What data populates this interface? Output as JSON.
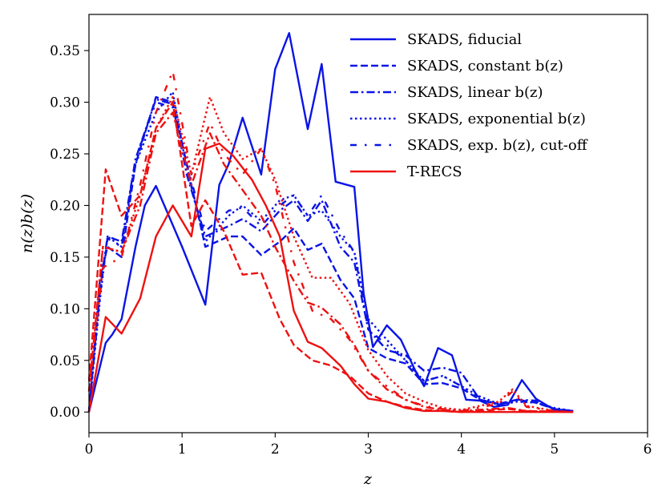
{
  "chart_data": {
    "type": "line",
    "title": "",
    "xlabel": "z",
    "ylabel": "n(z)b(z)",
    "xlim": [
      0,
      6
    ],
    "ylim": [
      -0.02,
      0.385
    ],
    "xticks": [
      "0",
      "1",
      "2",
      "3",
      "4",
      "5",
      "6"
    ],
    "yticks": [
      "0.00",
      "0.05",
      "0.10",
      "0.15",
      "0.20",
      "0.25",
      "0.30",
      "0.35"
    ],
    "grid": false,
    "legend_position": "top-right",
    "colors": {
      "skads": "#0a14e6",
      "trecs": "#ee1111"
    },
    "series": [
      {
        "name": "SKADS, fiducial",
        "color": "#0a14e6",
        "dash": "solid",
        "group": "skads",
        "points": [
          [
            0,
            0
          ],
          [
            0.18,
            0.067
          ],
          [
            0.25,
            0.075
          ],
          [
            0.35,
            0.09
          ],
          [
            0.5,
            0.16
          ],
          [
            0.6,
            0.2
          ],
          [
            0.72,
            0.219
          ],
          [
            1.0,
            0.16
          ],
          [
            1.25,
            0.104
          ],
          [
            1.4,
            0.22
          ],
          [
            1.5,
            0.24
          ],
          [
            1.65,
            0.285
          ],
          [
            1.85,
            0.23
          ],
          [
            2.0,
            0.332
          ],
          [
            2.15,
            0.367
          ],
          [
            2.35,
            0.274
          ],
          [
            2.5,
            0.337
          ],
          [
            2.65,
            0.223
          ],
          [
            2.85,
            0.218
          ],
          [
            2.95,
            0.115
          ],
          [
            3.05,
            0.063
          ],
          [
            3.2,
            0.084
          ],
          [
            3.35,
            0.07
          ],
          [
            3.5,
            0.041
          ],
          [
            3.6,
            0.025
          ],
          [
            3.75,
            0.062
          ],
          [
            3.9,
            0.055
          ],
          [
            4.05,
            0.012
          ],
          [
            4.2,
            0.011
          ],
          [
            4.35,
            0.005
          ],
          [
            4.5,
            0.007
          ],
          [
            4.65,
            0.031
          ],
          [
            4.8,
            0.013
          ],
          [
            5.0,
            0.002
          ],
          [
            5.2,
            0.001
          ]
        ]
      },
      {
        "name": "SKADS, constant b(z)",
        "color": "#0a14e6",
        "dash": "dashed",
        "group": "skads",
        "points": [
          [
            0,
            0
          ],
          [
            0.12,
            0.13
          ],
          [
            0.2,
            0.16
          ],
          [
            0.35,
            0.15
          ],
          [
            0.5,
            0.24
          ],
          [
            0.72,
            0.305
          ],
          [
            0.9,
            0.3
          ],
          [
            1.05,
            0.24
          ],
          [
            1.25,
            0.16
          ],
          [
            1.5,
            0.17
          ],
          [
            1.65,
            0.17
          ],
          [
            1.85,
            0.152
          ],
          [
            2.05,
            0.165
          ],
          [
            2.2,
            0.178
          ],
          [
            2.35,
            0.157
          ],
          [
            2.5,
            0.163
          ],
          [
            2.7,
            0.128
          ],
          [
            2.85,
            0.11
          ],
          [
            3.0,
            0.062
          ],
          [
            3.2,
            0.052
          ],
          [
            3.4,
            0.047
          ],
          [
            3.6,
            0.027
          ],
          [
            3.8,
            0.028
          ],
          [
            4.0,
            0.023
          ],
          [
            4.2,
            0.012
          ],
          [
            4.4,
            0.008
          ],
          [
            4.6,
            0.012
          ],
          [
            4.8,
            0.009
          ],
          [
            5.0,
            0.003
          ],
          [
            5.2,
            0.001
          ]
        ]
      },
      {
        "name": "SKADS, linear b(z)",
        "color": "#0a14e6",
        "dash": "dashdot",
        "group": "skads",
        "points": [
          [
            0,
            0
          ],
          [
            0.12,
            0.12
          ],
          [
            0.2,
            0.17
          ],
          [
            0.35,
            0.165
          ],
          [
            0.5,
            0.245
          ],
          [
            0.72,
            0.303
          ],
          [
            0.9,
            0.298
          ],
          [
            1.05,
            0.23
          ],
          [
            1.25,
            0.17
          ],
          [
            1.5,
            0.18
          ],
          [
            1.65,
            0.187
          ],
          [
            1.85,
            0.175
          ],
          [
            2.05,
            0.195
          ],
          [
            2.2,
            0.205
          ],
          [
            2.35,
            0.185
          ],
          [
            2.5,
            0.205
          ],
          [
            2.7,
            0.16
          ],
          [
            2.85,
            0.145
          ],
          [
            3.0,
            0.08
          ],
          [
            3.2,
            0.06
          ],
          [
            3.4,
            0.055
          ],
          [
            3.6,
            0.04
          ],
          [
            3.8,
            0.043
          ],
          [
            4.0,
            0.038
          ],
          [
            4.2,
            0.012
          ],
          [
            4.4,
            0.007
          ],
          [
            4.6,
            0.012
          ],
          [
            4.8,
            0.011
          ],
          [
            5.0,
            0.003
          ],
          [
            5.2,
            0.001
          ]
        ]
      },
      {
        "name": "SKADS, exponential b(z)",
        "color": "#0a14e6",
        "dash": "dotted",
        "group": "skads",
        "points": [
          [
            0,
            0
          ],
          [
            0.12,
            0.11
          ],
          [
            0.2,
            0.17
          ],
          [
            0.35,
            0.16
          ],
          [
            0.5,
            0.24
          ],
          [
            0.72,
            0.29
          ],
          [
            0.9,
            0.31
          ],
          [
            1.05,
            0.235
          ],
          [
            1.25,
            0.165
          ],
          [
            1.5,
            0.19
          ],
          [
            1.65,
            0.2
          ],
          [
            1.85,
            0.185
          ],
          [
            2.05,
            0.205
          ],
          [
            2.2,
            0.21
          ],
          [
            2.35,
            0.19
          ],
          [
            2.5,
            0.195
          ],
          [
            2.7,
            0.17
          ],
          [
            2.85,
            0.155
          ],
          [
            3.0,
            0.09
          ],
          [
            3.2,
            0.07
          ],
          [
            3.4,
            0.05
          ],
          [
            3.6,
            0.03
          ],
          [
            3.8,
            0.035
          ],
          [
            4.0,
            0.025
          ],
          [
            4.2,
            0.015
          ],
          [
            4.4,
            0.008
          ],
          [
            4.6,
            0.01
          ],
          [
            4.8,
            0.009
          ],
          [
            5.0,
            0.004
          ],
          [
            5.2,
            0.001
          ]
        ]
      },
      {
        "name": "SKADS, exp. b(z), cut-off",
        "color": "#0a14e6",
        "dash": "dashdotsparse",
        "group": "skads",
        "points": [
          [
            0,
            0
          ],
          [
            0.12,
            0.115
          ],
          [
            0.2,
            0.168
          ],
          [
            0.35,
            0.16
          ],
          [
            0.5,
            0.245
          ],
          [
            0.72,
            0.3
          ],
          [
            0.9,
            0.295
          ],
          [
            1.05,
            0.24
          ],
          [
            1.25,
            0.175
          ],
          [
            1.5,
            0.195
          ],
          [
            1.65,
            0.198
          ],
          [
            1.85,
            0.18
          ],
          [
            2.05,
            0.2
          ],
          [
            2.2,
            0.21
          ],
          [
            2.35,
            0.19
          ],
          [
            2.5,
            0.21
          ],
          [
            2.7,
            0.175
          ],
          [
            2.85,
            0.155
          ],
          [
            3.0,
            0.08
          ],
          [
            3.2,
            0.065
          ],
          [
            3.4,
            0.05
          ],
          [
            3.6,
            0.03
          ],
          [
            3.8,
            0.035
          ],
          [
            4.0,
            0.025
          ],
          [
            4.2,
            0.014
          ],
          [
            4.4,
            0.007
          ],
          [
            4.6,
            0.01
          ],
          [
            4.8,
            0.01
          ],
          [
            5.0,
            0.003
          ],
          [
            5.2,
            0.001
          ]
        ]
      },
      {
        "name": "T-RECS",
        "color": "#ee1111",
        "dash": "solid",
        "group": "trecs",
        "points": [
          [
            0,
            0
          ],
          [
            0.18,
            0.092
          ],
          [
            0.35,
            0.076
          ],
          [
            0.55,
            0.11
          ],
          [
            0.72,
            0.17
          ],
          [
            0.9,
            0.2
          ],
          [
            1.1,
            0.17
          ],
          [
            1.25,
            0.255
          ],
          [
            1.4,
            0.26
          ],
          [
            1.55,
            0.248
          ],
          [
            1.75,
            0.225
          ],
          [
            1.9,
            0.2
          ],
          [
            2.05,
            0.17
          ],
          [
            2.2,
            0.098
          ],
          [
            2.35,
            0.068
          ],
          [
            2.5,
            0.062
          ],
          [
            2.7,
            0.045
          ],
          [
            2.85,
            0.027
          ],
          [
            3.0,
            0.013
          ],
          [
            3.2,
            0.01
          ],
          [
            3.4,
            0.004
          ],
          [
            3.6,
            0.001
          ],
          [
            3.8,
            0.001
          ],
          [
            4.0,
            0.0
          ],
          [
            4.5,
            0.0
          ],
          [
            5.0,
            0.0
          ],
          [
            5.2,
            0.0
          ]
        ]
      },
      {
        "name": "",
        "color": "#ee1111",
        "dash": "dashed",
        "group": "trecs",
        "points": [
          [
            0,
            0.03
          ],
          [
            0.18,
            0.235
          ],
          [
            0.35,
            0.19
          ],
          [
            0.55,
            0.21
          ],
          [
            0.72,
            0.275
          ],
          [
            0.9,
            0.3
          ],
          [
            1.1,
            0.18
          ],
          [
            1.25,
            0.205
          ],
          [
            1.45,
            0.175
          ],
          [
            1.65,
            0.133
          ],
          [
            1.85,
            0.135
          ],
          [
            2.05,
            0.09
          ],
          [
            2.2,
            0.065
          ],
          [
            2.4,
            0.05
          ],
          [
            2.6,
            0.045
          ],
          [
            2.8,
            0.035
          ],
          [
            3.0,
            0.018
          ],
          [
            3.2,
            0.01
          ],
          [
            3.4,
            0.005
          ],
          [
            3.6,
            0.002
          ],
          [
            3.8,
            0.001
          ],
          [
            4.0,
            0.0
          ],
          [
            4.5,
            0.003
          ],
          [
            4.7,
            0.001
          ],
          [
            5.2,
            0.0
          ]
        ]
      },
      {
        "name": "",
        "color": "#ee1111",
        "dash": "dashdot",
        "group": "trecs",
        "points": [
          [
            0,
            0.02
          ],
          [
            0.15,
            0.16
          ],
          [
            0.35,
            0.155
          ],
          [
            0.55,
            0.2
          ],
          [
            0.72,
            0.27
          ],
          [
            0.9,
            0.29
          ],
          [
            1.1,
            0.22
          ],
          [
            1.3,
            0.27
          ],
          [
            1.45,
            0.24
          ],
          [
            1.65,
            0.215
          ],
          [
            1.85,
            0.19
          ],
          [
            2.0,
            0.16
          ],
          [
            2.2,
            0.127
          ],
          [
            2.35,
            0.106
          ],
          [
            2.5,
            0.101
          ],
          [
            2.7,
            0.085
          ],
          [
            2.85,
            0.065
          ],
          [
            3.0,
            0.04
          ],
          [
            3.2,
            0.022
          ],
          [
            3.4,
            0.012
          ],
          [
            3.6,
            0.005
          ],
          [
            3.8,
            0.002
          ],
          [
            4.0,
            0.001
          ],
          [
            4.5,
            0.004
          ],
          [
            4.7,
            0.001
          ],
          [
            5.2,
            0.0
          ]
        ]
      },
      {
        "name": "",
        "color": "#ee1111",
        "dash": "dotted",
        "group": "trecs",
        "points": [
          [
            0,
            0.02
          ],
          [
            0.15,
            0.16
          ],
          [
            0.35,
            0.155
          ],
          [
            0.55,
            0.21
          ],
          [
            0.72,
            0.275
          ],
          [
            0.9,
            0.305
          ],
          [
            1.1,
            0.23
          ],
          [
            1.3,
            0.305
          ],
          [
            1.45,
            0.27
          ],
          [
            1.65,
            0.245
          ],
          [
            1.85,
            0.255
          ],
          [
            2.0,
            0.225
          ],
          [
            2.2,
            0.17
          ],
          [
            2.4,
            0.13
          ],
          [
            2.6,
            0.13
          ],
          [
            2.8,
            0.105
          ],
          [
            3.0,
            0.06
          ],
          [
            3.2,
            0.035
          ],
          [
            3.4,
            0.018
          ],
          [
            3.6,
            0.01
          ],
          [
            3.8,
            0.004
          ],
          [
            4.0,
            0.002
          ],
          [
            4.4,
            0.01
          ],
          [
            4.55,
            0.022
          ],
          [
            4.7,
            0.006
          ],
          [
            5.0,
            0.001
          ],
          [
            5.2,
            0.0
          ]
        ]
      },
      {
        "name": "",
        "color": "#ee1111",
        "dash": "dashdotsparse",
        "group": "trecs",
        "points": [
          [
            0,
            0.02
          ],
          [
            0.15,
            0.14
          ],
          [
            0.35,
            0.15
          ],
          [
            0.55,
            0.22
          ],
          [
            0.72,
            0.29
          ],
          [
            0.9,
            0.33
          ],
          [
            1.1,
            0.23
          ],
          [
            1.3,
            0.28
          ],
          [
            1.45,
            0.25
          ],
          [
            1.65,
            0.23
          ],
          [
            1.85,
            0.255
          ],
          [
            2.0,
            0.22
          ],
          [
            2.2,
            0.145
          ],
          [
            2.4,
            0.098
          ],
          [
            2.6,
            0.09
          ],
          [
            2.8,
            0.07
          ],
          [
            3.0,
            0.04
          ],
          [
            3.2,
            0.025
          ],
          [
            3.4,
            0.012
          ],
          [
            3.6,
            0.006
          ],
          [
            3.8,
            0.003
          ],
          [
            4.0,
            0.001
          ],
          [
            4.4,
            0.008
          ],
          [
            4.55,
            0.02
          ],
          [
            4.7,
            0.005
          ],
          [
            5.0,
            0.001
          ],
          [
            5.2,
            0.0
          ]
        ]
      }
    ],
    "legend": [
      {
        "label": "SKADS, fiducial",
        "color": "#0a14e6",
        "dash": "solid"
      },
      {
        "label": "SKADS, constant b(z)",
        "color": "#0a14e6",
        "dash": "dashed"
      },
      {
        "label": "SKADS, linear b(z)",
        "color": "#0a14e6",
        "dash": "dashdot"
      },
      {
        "label": "SKADS, exponential b(z)",
        "color": "#0a14e6",
        "dash": "dotted"
      },
      {
        "label": "SKADS, exp. b(z), cut-off",
        "color": "#0a14e6",
        "dash": "dashdotsparse"
      },
      {
        "label": "T-RECS",
        "color": "#ee1111",
        "dash": "solid"
      }
    ]
  }
}
